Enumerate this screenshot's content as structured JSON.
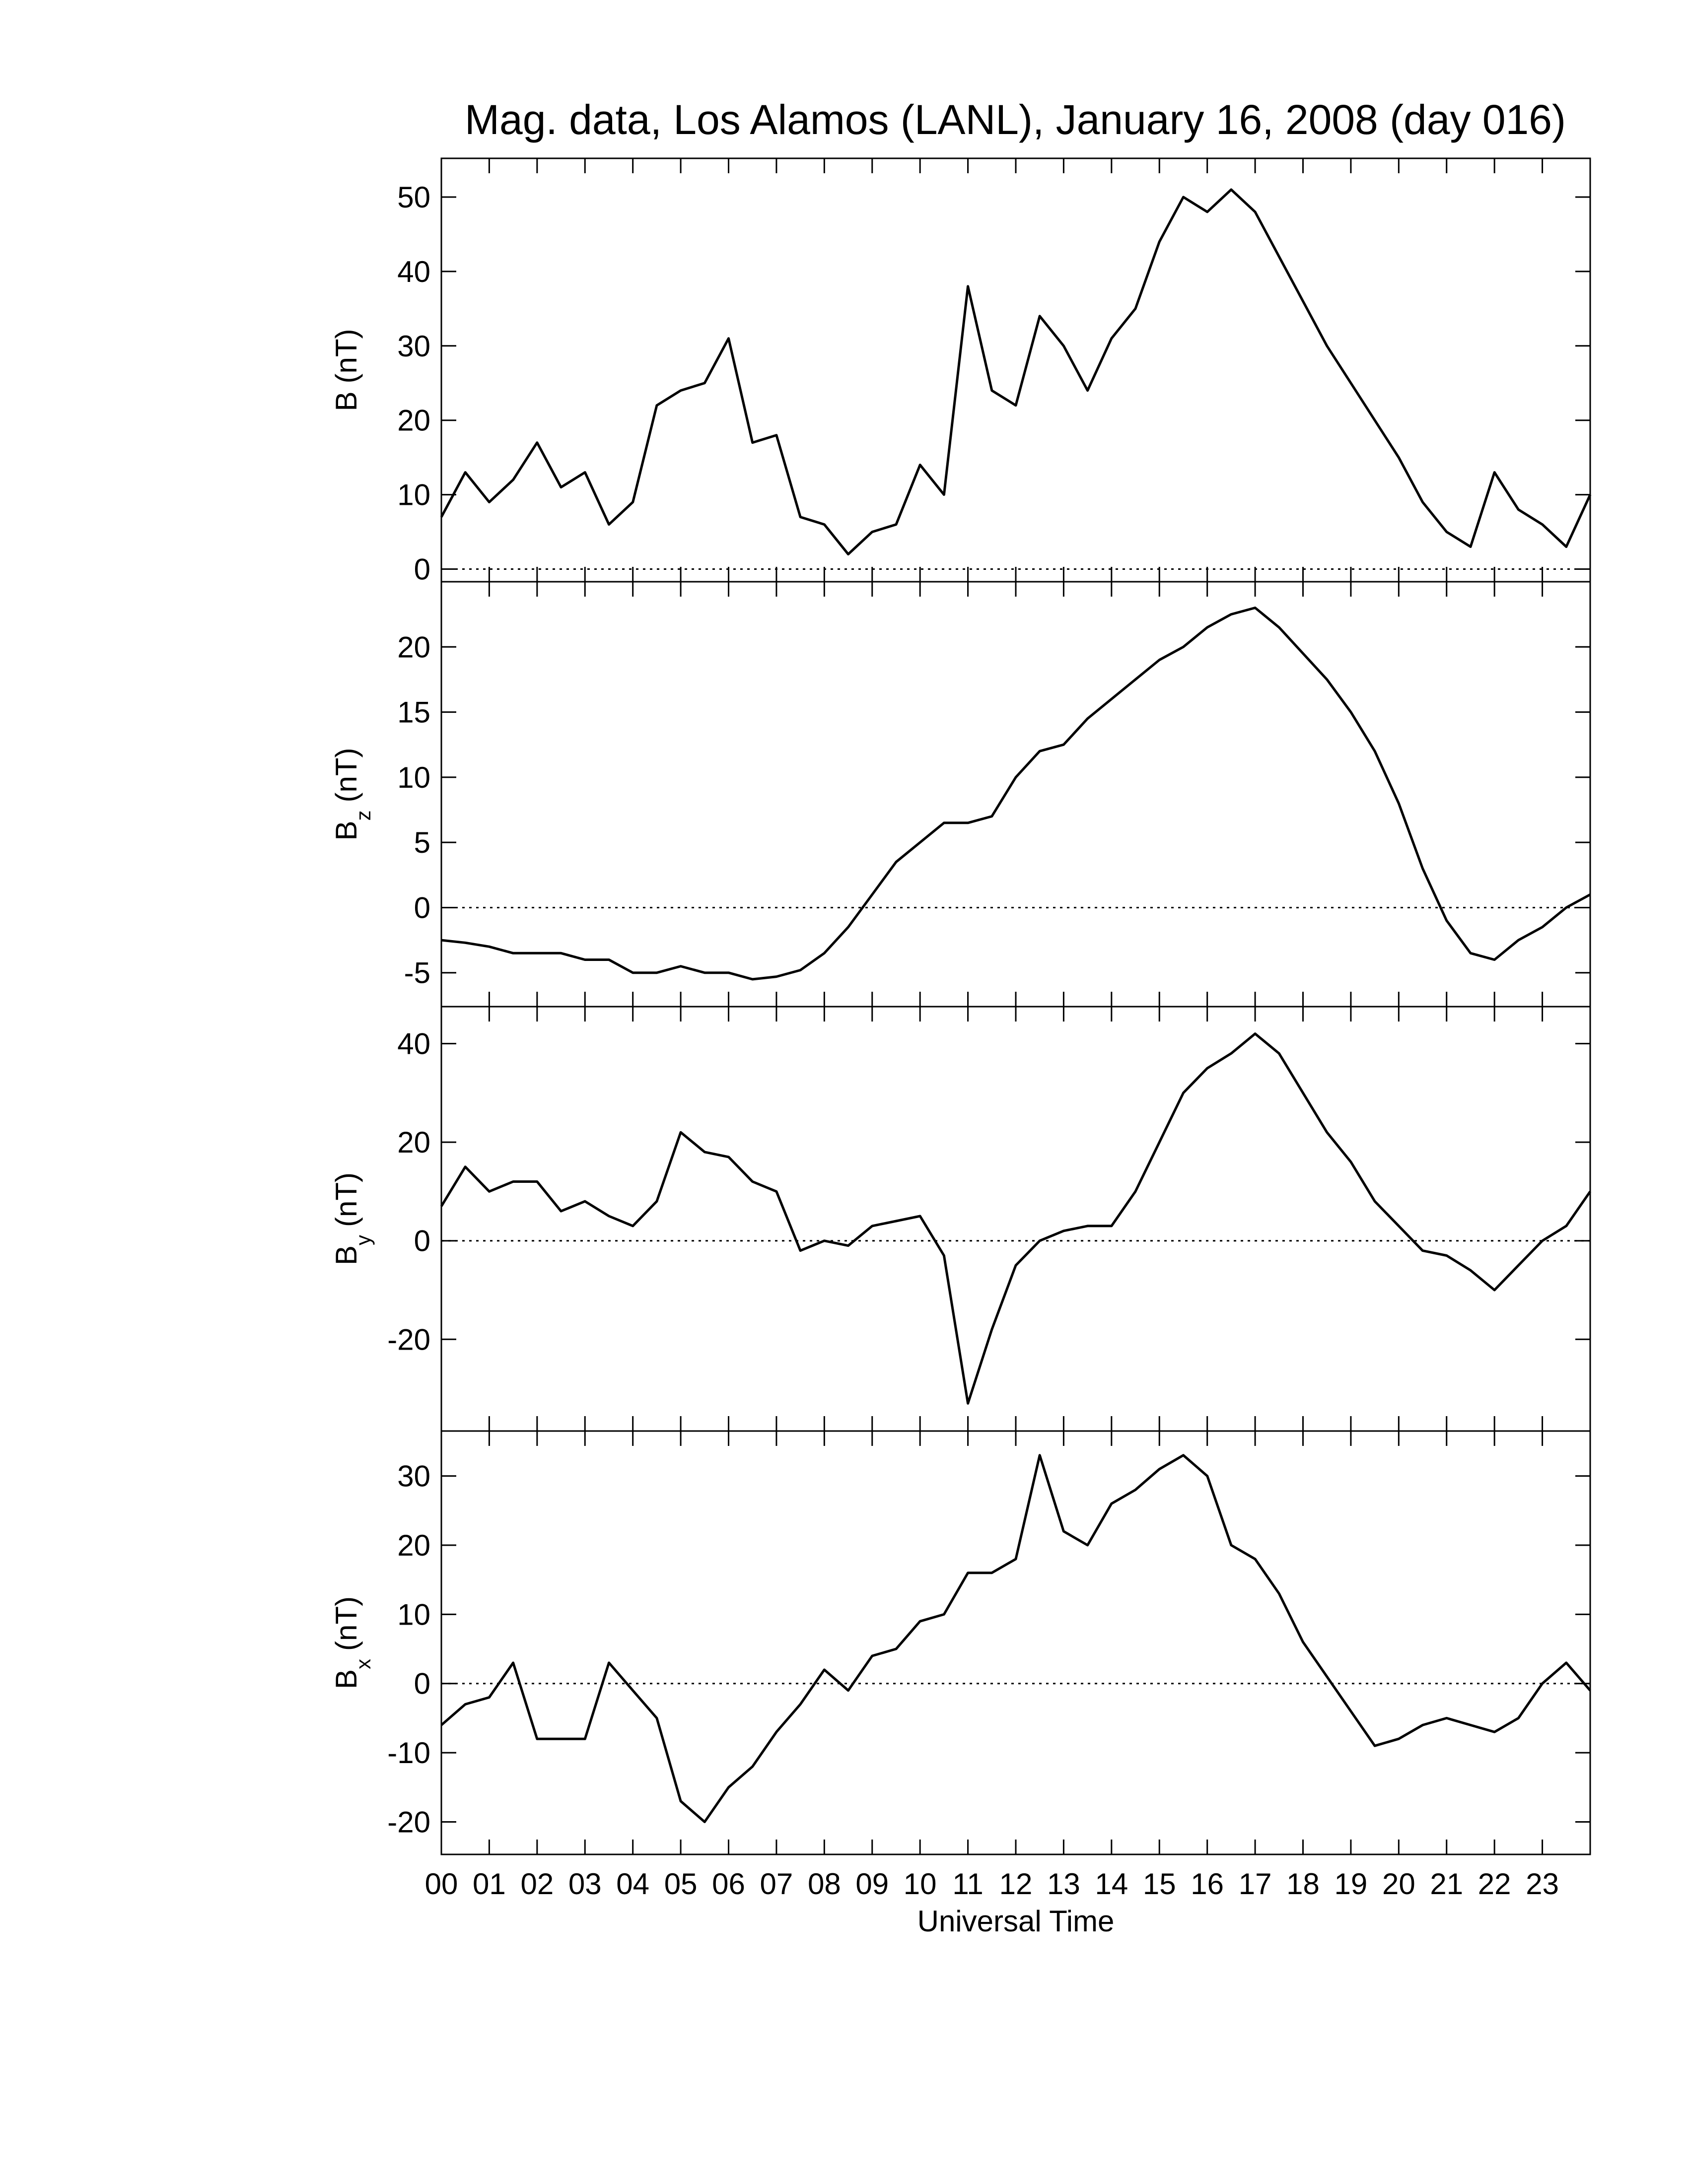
{
  "chart_data": [
    {
      "type": "line",
      "title": "Mag. data, Los Alamos (LANL), January 16, 2008 (day 016)",
      "ylabel": {
        "base": "B",
        "unit": "(nT)"
      },
      "color": "#000000",
      "zero_line": true,
      "xlim": [
        0,
        24
      ],
      "ylim": [
        -1.7,
        55.2
      ],
      "yticks": [
        0,
        10,
        20,
        30,
        40,
        50
      ],
      "x": [
        0,
        0.5,
        1,
        1.5,
        2,
        2.5,
        3,
        3.5,
        4,
        4.5,
        5,
        5.5,
        6,
        6.5,
        7,
        7.5,
        8,
        8.5,
        9,
        9.5,
        10,
        10.5,
        11,
        11.5,
        12,
        12.5,
        13,
        13.5,
        14,
        14.5,
        15,
        15.5,
        16,
        16.5,
        17,
        17.5,
        18,
        18.5,
        19,
        19.5,
        20,
        20.5,
        21,
        21.5,
        22,
        22.5,
        23,
        23.5,
        24
      ],
      "values": [
        7,
        13,
        9,
        12,
        17,
        11,
        13,
        6,
        9,
        22,
        24,
        25,
        31,
        17,
        18,
        7,
        6,
        2,
        5,
        6,
        14,
        10,
        38,
        24,
        22,
        34,
        30,
        24,
        31,
        35,
        44,
        50,
        48,
        51,
        48,
        42,
        36,
        30,
        25,
        20,
        15,
        9,
        5,
        3,
        13,
        8,
        6,
        3,
        10
      ]
    },
    {
      "type": "line",
      "ylabel": {
        "base": "B",
        "sub": "z",
        "unit": "(nT)"
      },
      "color": "#000000",
      "zero_line": true,
      "xlim": [
        0,
        24
      ],
      "ylim": [
        -7.6,
        25
      ],
      "yticks": [
        -5,
        0,
        5,
        10,
        15,
        20
      ],
      "x": [
        0,
        0.5,
        1,
        1.5,
        2,
        2.5,
        3,
        3.5,
        4,
        4.5,
        5,
        5.5,
        6,
        6.5,
        7,
        7.5,
        8,
        8.5,
        9,
        9.5,
        10,
        10.5,
        11,
        11.5,
        12,
        12.5,
        13,
        13.5,
        14,
        14.5,
        15,
        15.5,
        16,
        16.5,
        17,
        17.5,
        18,
        18.5,
        19,
        19.5,
        20,
        20.5,
        21,
        21.5,
        22,
        22.5,
        23,
        23.5,
        24
      ],
      "values": [
        -2.5,
        -2.7,
        -3,
        -3.5,
        -3.5,
        -3.5,
        -4,
        -4,
        -5,
        -5,
        -4.5,
        -5,
        -5,
        -5.5,
        -5.3,
        -4.8,
        -3.5,
        -1.5,
        1,
        3.5,
        5,
        6.5,
        6.5,
        7,
        10,
        12,
        12.5,
        14.5,
        16,
        17.5,
        19,
        20,
        21.5,
        22.5,
        23,
        21.5,
        19.5,
        17.5,
        15,
        12,
        8,
        3,
        -1,
        -3.5,
        -4,
        -2.5,
        -1.5,
        0,
        1
      ]
    },
    {
      "type": "line",
      "ylabel": {
        "base": "B",
        "sub": "y",
        "unit": "(nT)"
      },
      "color": "#000000",
      "zero_line": true,
      "xlim": [
        0,
        24
      ],
      "ylim": [
        -38.6,
        47.5
      ],
      "yticks": [
        -20,
        0,
        20,
        40
      ],
      "x": [
        0,
        0.5,
        1,
        1.5,
        2,
        2.5,
        3,
        3.5,
        4,
        4.5,
        5,
        5.5,
        6,
        6.5,
        7,
        7.5,
        8,
        8.5,
        9,
        9.5,
        10,
        10.5,
        11,
        11.5,
        12,
        12.5,
        13,
        13.5,
        14,
        14.5,
        15,
        15.5,
        16,
        16.5,
        17,
        17.5,
        18,
        18.5,
        19,
        19.5,
        20,
        20.5,
        21,
        21.5,
        22,
        22.5,
        23,
        23.5,
        24
      ],
      "values": [
        7,
        15,
        10,
        12,
        12,
        6,
        8,
        5,
        3,
        8,
        22,
        18,
        17,
        12,
        10,
        -2,
        0,
        -1,
        3,
        4,
        5,
        -3,
        -33,
        -18,
        -5,
        0,
        2,
        3,
        3,
        10,
        20,
        30,
        35,
        38,
        42,
        38,
        30,
        22,
        16,
        8,
        3,
        -2,
        -3,
        -6,
        -10,
        -5,
        0,
        3,
        10
      ]
    },
    {
      "type": "line",
      "ylabel": {
        "base": "B",
        "sub": "x",
        "unit": "(nT)"
      },
      "color": "#000000",
      "zero_line": true,
      "xlabel": "Universal Time",
      "xlim": [
        0,
        24
      ],
      "ylim": [
        -24.7,
        36.5
      ],
      "yticks": [
        -20,
        -10,
        0,
        10,
        20,
        30
      ],
      "xticks": [
        {
          "value": 0,
          "label": "00"
        },
        {
          "value": 1,
          "label": "01"
        },
        {
          "value": 2,
          "label": "02"
        },
        {
          "value": 3,
          "label": "03"
        },
        {
          "value": 4,
          "label": "04"
        },
        {
          "value": 5,
          "label": "05"
        },
        {
          "value": 6,
          "label": "06"
        },
        {
          "value": 7,
          "label": "07"
        },
        {
          "value": 8,
          "label": "08"
        },
        {
          "value": 9,
          "label": "09"
        },
        {
          "value": 10,
          "label": "10"
        },
        {
          "value": 11,
          "label": "11"
        },
        {
          "value": 12,
          "label": "12"
        },
        {
          "value": 13,
          "label": "13"
        },
        {
          "value": 14,
          "label": "14"
        },
        {
          "value": 15,
          "label": "15"
        },
        {
          "value": 16,
          "label": "16"
        },
        {
          "value": 17,
          "label": "17"
        },
        {
          "value": 18,
          "label": "18"
        },
        {
          "value": 19,
          "label": "19"
        },
        {
          "value": 20,
          "label": "20"
        },
        {
          "value": 21,
          "label": "21"
        },
        {
          "value": 22,
          "label": "22"
        },
        {
          "value": 23,
          "label": "23"
        }
      ],
      "x": [
        0,
        0.5,
        1,
        1.5,
        2,
        2.5,
        3,
        3.5,
        4,
        4.5,
        5,
        5.5,
        6,
        6.5,
        7,
        7.5,
        8,
        8.5,
        9,
        9.5,
        10,
        10.5,
        11,
        11.5,
        12,
        12.5,
        13,
        13.5,
        14,
        14.5,
        15,
        15.5,
        16,
        16.5,
        17,
        17.5,
        18,
        18.5,
        19,
        19.5,
        20,
        20.5,
        21,
        21.5,
        22,
        22.5,
        23,
        23.5,
        24
      ],
      "values": [
        -6,
        -3,
        -2,
        3,
        -8,
        -8,
        -8,
        3,
        -1,
        -5,
        -17,
        -20,
        -15,
        -12,
        -7,
        -3,
        2,
        -1,
        4,
        5,
        9,
        10,
        16,
        16,
        18,
        33,
        22,
        20,
        26,
        28,
        31,
        33,
        30,
        20,
        18,
        13,
        6,
        1,
        -4,
        -9,
        -8,
        -6,
        -5,
        -6,
        -7,
        -5,
        0,
        3,
        -1
      ]
    }
  ]
}
